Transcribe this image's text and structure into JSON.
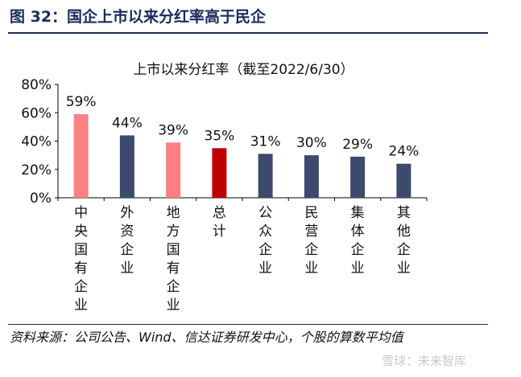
{
  "header": {
    "title": "图 32：国企上市以来分红率高于民企"
  },
  "chart_data": {
    "type": "bar",
    "title": "上市以来分红率（截至2022/6/30）",
    "categories": [
      "中央国有企业",
      "外资企业",
      "地方国有企业",
      "总计",
      "公众企业",
      "民营企业",
      "集体企业",
      "其他企业"
    ],
    "values": [
      59,
      44,
      39,
      35,
      31,
      30,
      29,
      24
    ],
    "value_labels": [
      "59%",
      "44%",
      "39%",
      "35%",
      "31%",
      "30%",
      "29%",
      "24%"
    ],
    "bar_colors": [
      "#ff8080",
      "#3d4a6e",
      "#ff8080",
      "#c00000",
      "#3d4a6e",
      "#3d4a6e",
      "#3d4a6e",
      "#3d4a6e"
    ],
    "ylim": [
      0,
      80
    ],
    "yticks": [
      0,
      20,
      40,
      60,
      80
    ],
    "ytick_labels": [
      "0%",
      "20%",
      "40%",
      "60%",
      "80%"
    ],
    "grid": false,
    "legend": "none"
  },
  "source": "资料来源：公司公告、Wind、信达证券研发中心，个股的算数平均值",
  "watermark": "雪球：未来智库"
}
